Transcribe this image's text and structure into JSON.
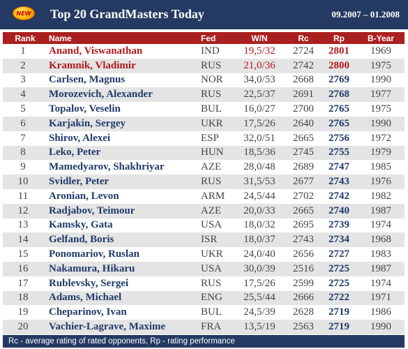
{
  "header": {
    "badge": "NEW",
    "title": "Top 20 GrandMasters Today",
    "period": "09.2007 – 01.2008"
  },
  "columns": {
    "rank": "Rank",
    "name": "Name",
    "fed": "Fed",
    "wn": "W/N",
    "rc": "Rc",
    "rp": "Rp",
    "byear": "B-Year"
  },
  "rows": [
    {
      "rank": "1",
      "name": "Anand, Viswanathan",
      "fed": "IND",
      "wn": "19,5/32",
      "rc": "2724",
      "rp": "2801",
      "byear": "1969"
    },
    {
      "rank": "2",
      "name": "Kramnik, Vladimir",
      "fed": "RUS",
      "wn": "21,0/36",
      "rc": "2742",
      "rp": "2800",
      "byear": "1975"
    },
    {
      "rank": "3",
      "name": "Carlsen, Magnus",
      "fed": "NOR",
      "wn": "34,0/53",
      "rc": "2668",
      "rp": "2769",
      "byear": "1990"
    },
    {
      "rank": "4",
      "name": "Morozevich, Alexander",
      "fed": "RUS",
      "wn": "22,5/37",
      "rc": "2691",
      "rp": "2768",
      "byear": "1977"
    },
    {
      "rank": "5",
      "name": "Topalov, Veselin",
      "fed": "BUL",
      "wn": "16,0/27",
      "rc": "2700",
      "rp": "2765",
      "byear": "1975"
    },
    {
      "rank": "6",
      "name": "Karjakin, Sergey",
      "fed": "UKR",
      "wn": "17,5/26",
      "rc": "2640",
      "rp": "2765",
      "byear": "1990"
    },
    {
      "rank": "7",
      "name": "Shirov, Alexei",
      "fed": "ESP",
      "wn": "32,0/51",
      "rc": "2665",
      "rp": "2756",
      "byear": "1972"
    },
    {
      "rank": "8",
      "name": "Leko, Peter",
      "fed": "HUN",
      "wn": "18,5/36",
      "rc": "2745",
      "rp": "2755",
      "byear": "1979"
    },
    {
      "rank": "9",
      "name": "Mamedyarov, Shakhriyar",
      "fed": "AZE",
      "wn": "28,0/48",
      "rc": "2689",
      "rp": "2747",
      "byear": "1985"
    },
    {
      "rank": "10",
      "name": "Svidler, Peter",
      "fed": "RUS",
      "wn": "31,5/53",
      "rc": "2677",
      "rp": "2743",
      "byear": "1976"
    },
    {
      "rank": "11",
      "name": "Aronian, Levon",
      "fed": "ARM",
      "wn": "24,5/44",
      "rc": "2702",
      "rp": "2742",
      "byear": "1982"
    },
    {
      "rank": "12",
      "name": "Radjabov, Teimour",
      "fed": "AZE",
      "wn": "20,0/33",
      "rc": "2665",
      "rp": "2740",
      "byear": "1987"
    },
    {
      "rank": "13",
      "name": "Kamsky, Gata",
      "fed": "USA",
      "wn": "18,0/32",
      "rc": "2695",
      "rp": "2739",
      "byear": "1974"
    },
    {
      "rank": "14",
      "name": "Gelfand, Boris",
      "fed": "ISR",
      "wn": "18,0/37",
      "rc": "2743",
      "rp": "2734",
      "byear": "1968"
    },
    {
      "rank": "15",
      "name": "Ponomariov, Ruslan",
      "fed": "UKR",
      "wn": "24,0/40",
      "rc": "2656",
      "rp": "2727",
      "byear": "1983"
    },
    {
      "rank": "16",
      "name": "Nakamura, Hikaru",
      "fed": "USA",
      "wn": "30,0/39",
      "rc": "2516",
      "rp": "2725",
      "byear": "1987"
    },
    {
      "rank": "17",
      "name": "Rublevsky, Sergei",
      "fed": "RUS",
      "wn": "17,5/26",
      "rc": "2599",
      "rp": "2725",
      "byear": "1974"
    },
    {
      "rank": "18",
      "name": "Adams, Michael",
      "fed": "ENG",
      "wn": "25,5/44",
      "rc": "2666",
      "rp": "2722",
      "byear": "1971"
    },
    {
      "rank": "19",
      "name": "Cheparinov, Ivan",
      "fed": "BUL",
      "wn": "24,5/39",
      "rc": "2628",
      "rp": "2719",
      "byear": "1986"
    },
    {
      "rank": "20",
      "name": "Vachier-Lagrave, Maxime",
      "fed": "FRA",
      "wn": "13,5/19",
      "rc": "2563",
      "rp": "2719",
      "byear": "1990"
    }
  ],
  "footer": {
    "note": "Rc - average rating of rated opponents, Rp - rating performance"
  },
  "colors": {
    "header_bg": "#243a62",
    "column_header_bg": "#aa1f1f",
    "highlight_red": "#b2171b",
    "name_blue": "#1f3b69",
    "alt_row_bg": "#e4e4e4"
  }
}
